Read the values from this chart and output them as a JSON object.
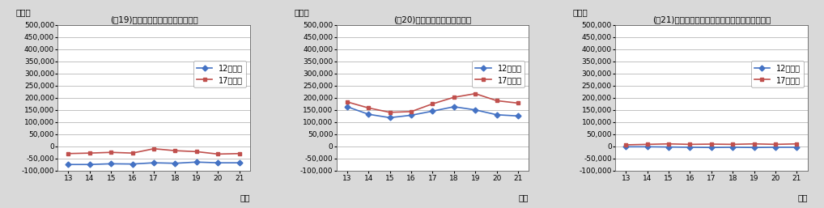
{
  "charts": [
    {
      "title": "(囲19)財産所得（一般政府）の比較",
      "ylabel": "百万円",
      "xlabel": "年度",
      "years": [
        13,
        14,
        15,
        16,
        17,
        18,
        19,
        20,
        21
      ],
      "series12": [
        -75000,
        -75000,
        -72000,
        -73000,
        -68000,
        -70000,
        -65000,
        -68000,
        -68000
      ],
      "series17": [
        -30000,
        -28000,
        -25000,
        -28000,
        -10000,
        -18000,
        -22000,
        -32000,
        -30000
      ],
      "ylim": [
        -100000,
        500000
      ],
      "yticks": [
        -100000,
        -50000,
        0,
        50000,
        100000,
        150000,
        200000,
        250000,
        300000,
        350000,
        400000,
        450000,
        500000
      ]
    },
    {
      "title": "(囲20)財産所得（家計）の比較",
      "ylabel": "百万円",
      "xlabel": "年度",
      "years": [
        13,
        14,
        15,
        16,
        17,
        18,
        19,
        20,
        21
      ],
      "series12": [
        163000,
        132000,
        118000,
        128000,
        145000,
        163000,
        150000,
        130000,
        125000
      ],
      "series17": [
        183000,
        158000,
        140000,
        143000,
        175000,
        202000,
        217000,
        188000,
        178000
      ],
      "ylim": [
        -100000,
        500000
      ],
      "yticks": [
        -100000,
        -50000,
        0,
        50000,
        100000,
        150000,
        200000,
        250000,
        300000,
        350000,
        400000,
        450000,
        500000
      ]
    },
    {
      "title": "(囲21)財産所得（対家計民間非営利団体）の比較",
      "ylabel": "百万円",
      "xlabel": "年度",
      "years": [
        13,
        14,
        15,
        16,
        17,
        18,
        19,
        20,
        21
      ],
      "series12": [
        -2000,
        -2000,
        -3000,
        -4000,
        -5000,
        -4000,
        -5000,
        -4000,
        -4000
      ],
      "series17": [
        6000,
        8000,
        10000,
        8000,
        9000,
        8000,
        10000,
        8000,
        10000
      ],
      "ylim": [
        -100000,
        500000
      ],
      "yticks": [
        -100000,
        -50000,
        0,
        50000,
        100000,
        150000,
        200000,
        250000,
        300000,
        350000,
        400000,
        450000,
        500000
      ]
    }
  ],
  "color12": "#4472C4",
  "color17": "#C0504D",
  "legend12": "12年基準",
  "legend17": "17年基準",
  "bg_color": "#D9D9D9",
  "plot_bg": "#FFFFFF",
  "grid_color": "#AAAAAA"
}
